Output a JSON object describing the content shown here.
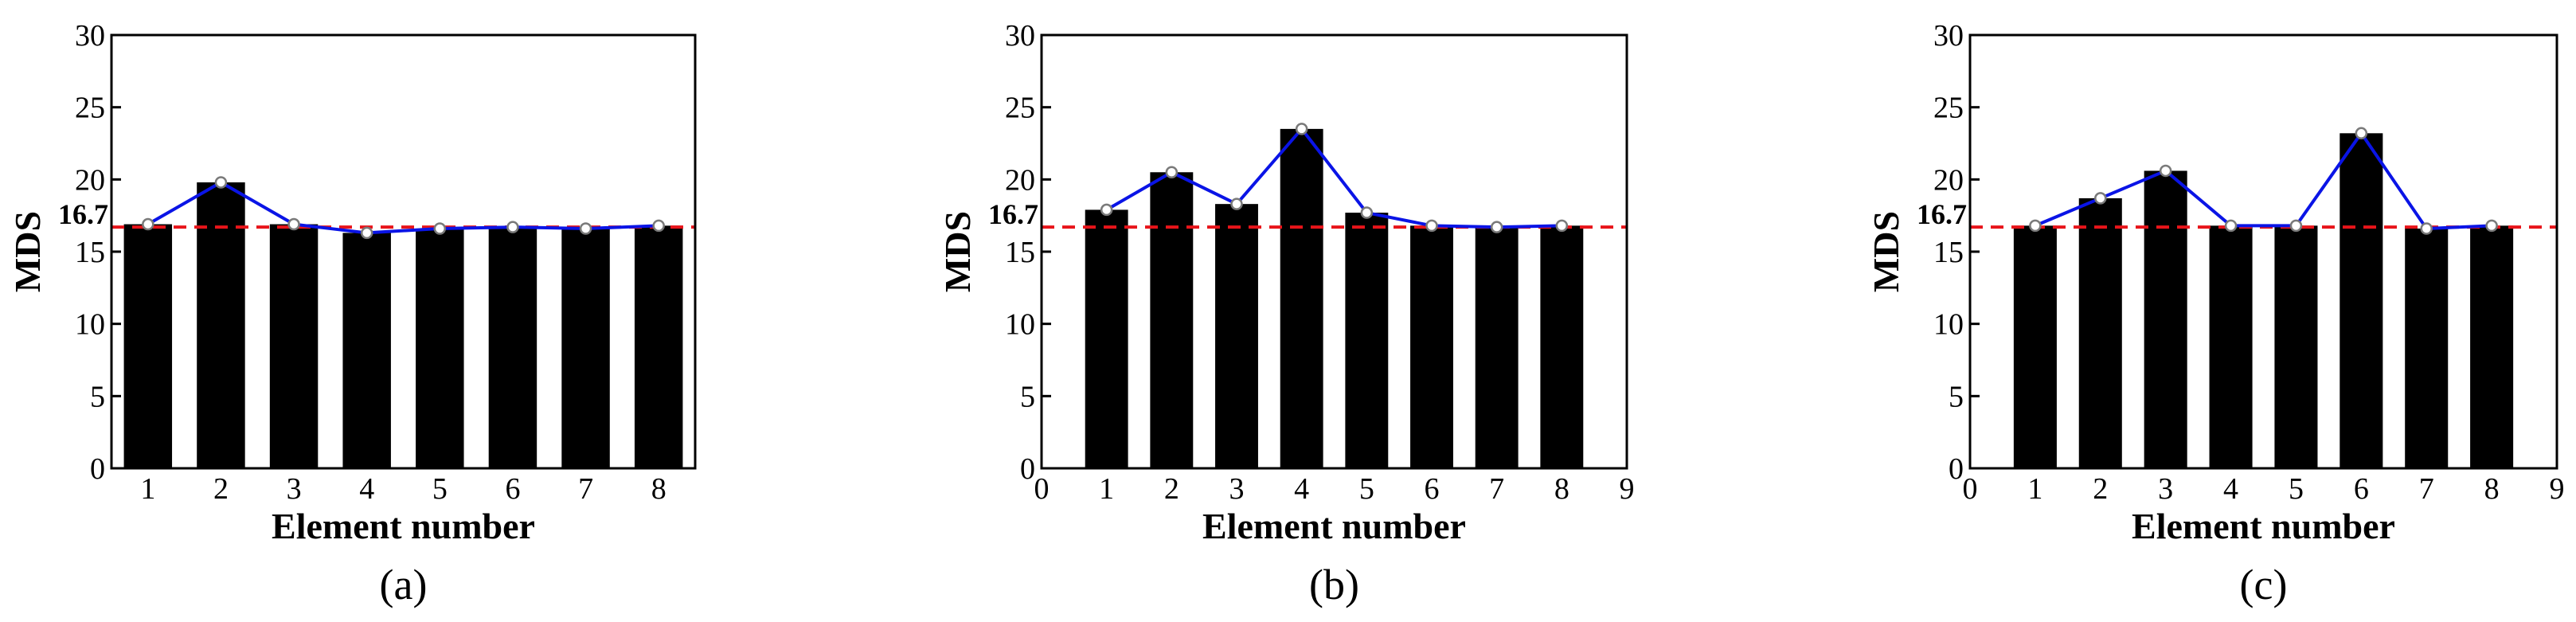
{
  "chart_data": [
    {
      "type": "bar",
      "panel_label": "(a)",
      "xlabel": "Element number",
      "ylabel": "MDS",
      "x": [
        1,
        2,
        3,
        4,
        5,
        6,
        7,
        8
      ],
      "values": [
        16.9,
        19.8,
        16.9,
        16.3,
        16.6,
        16.7,
        16.6,
        16.8
      ],
      "line_values": [
        16.9,
        19.8,
        16.9,
        16.3,
        16.6,
        16.7,
        16.6,
        16.8
      ],
      "reference_line": {
        "value": 16.7,
        "label": "16.7",
        "color": "#e8141a"
      },
      "xlim": [
        0.5,
        8.5
      ],
      "ylim": [
        0,
        30
      ],
      "xticks": [
        1,
        2,
        3,
        4,
        5,
        6,
        7,
        8
      ],
      "yticks": [
        0,
        5,
        10,
        15,
        20,
        25,
        30
      ],
      "bar_color": "#000000",
      "line_color": "#0a14e6",
      "grid": false
    },
    {
      "type": "bar",
      "panel_label": "(b)",
      "xlabel": "Element number",
      "ylabel": "MDS",
      "x": [
        1,
        2,
        3,
        4,
        5,
        6,
        7,
        8
      ],
      "values": [
        17.9,
        20.5,
        18.3,
        23.5,
        17.7,
        16.8,
        16.7,
        16.8
      ],
      "line_values": [
        17.9,
        20.5,
        18.3,
        23.5,
        17.7,
        16.8,
        16.7,
        16.8
      ],
      "reference_line": {
        "value": 16.7,
        "label": "16.7",
        "color": "#e8141a"
      },
      "xlim": [
        0,
        9
      ],
      "ylim": [
        0,
        30
      ],
      "xticks": [
        0,
        1,
        2,
        3,
        4,
        5,
        6,
        7,
        8,
        9
      ],
      "yticks": [
        0,
        5,
        10,
        15,
        20,
        25,
        30
      ],
      "bar_color": "#000000",
      "line_color": "#0a14e6",
      "grid": false
    },
    {
      "type": "bar",
      "panel_label": "(c)",
      "xlabel": "Element number",
      "ylabel": "MDS",
      "x": [
        1,
        2,
        3,
        4,
        5,
        6,
        7,
        8
      ],
      "values": [
        16.8,
        18.7,
        20.6,
        16.8,
        16.8,
        23.2,
        16.6,
        16.8
      ],
      "line_values": [
        16.8,
        18.7,
        20.6,
        16.8,
        16.8,
        23.2,
        16.6,
        16.8
      ],
      "reference_line": {
        "value": 16.7,
        "label": "16.7",
        "color": "#e8141a"
      },
      "xlim": [
        0,
        9
      ],
      "ylim": [
        0,
        30
      ],
      "xticks": [
        0,
        1,
        2,
        3,
        4,
        5,
        6,
        7,
        8,
        9
      ],
      "yticks": [
        0,
        5,
        10,
        15,
        20,
        25,
        30
      ],
      "bar_color": "#000000",
      "line_color": "#0a14e6",
      "grid": false
    }
  ]
}
